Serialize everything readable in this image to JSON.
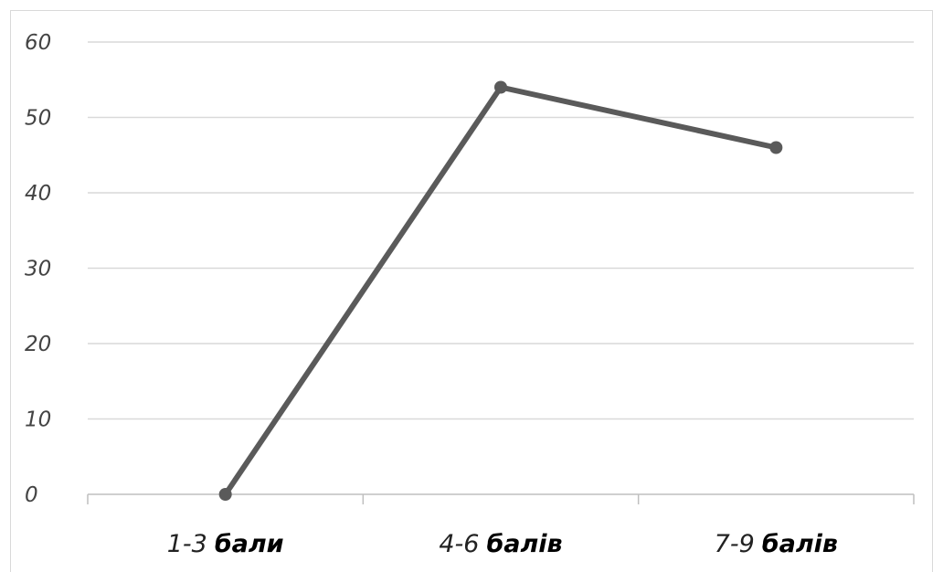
{
  "chart_data": {
    "type": "line",
    "categories": [
      {
        "number": "1-3",
        "word": "бали"
      },
      {
        "number": "4-6",
        "word": "балів"
      },
      {
        "number": "7-9",
        "word": "балів"
      }
    ],
    "values": [
      0,
      54,
      46
    ],
    "ylim": [
      0,
      60
    ],
    "yticks": [
      "0",
      "10",
      "20",
      "30",
      "40",
      "50",
      "60"
    ],
    "grid": true,
    "legend": "none",
    "colors": {
      "line": "#5a5a5a",
      "grid": "#d9d9d9",
      "axis": "#bfbfbf"
    }
  }
}
